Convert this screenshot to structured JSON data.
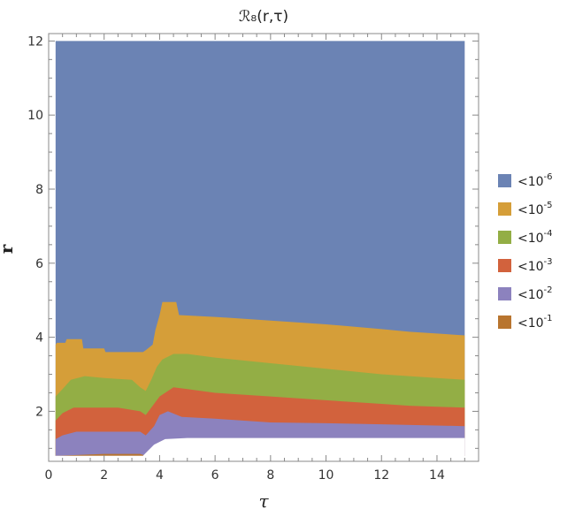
{
  "chart_data": {
    "type": "region",
    "title": "ℛ₈(r,τ)",
    "xlabel": "τ",
    "ylabel": "r",
    "xlim": [
      0,
      15.5
    ],
    "ylim": [
      0.65,
      12.2
    ],
    "xticks": [
      0,
      2,
      4,
      6,
      8,
      10,
      12,
      14
    ],
    "xtick_labels": [
      "0",
      "2",
      "4",
      "6",
      "8",
      "10",
      "12",
      "14"
    ],
    "yticks": [
      2,
      4,
      6,
      8,
      10,
      12
    ],
    "ytick_labels": [
      "2",
      "4",
      "6",
      "8",
      "10",
      "12"
    ],
    "grid": false,
    "legend_placement": "right",
    "legend": [
      {
        "base": "<10",
        "exponent": "-6",
        "color": "#6B83B4"
      },
      {
        "base": "<10",
        "exponent": "-5",
        "color": "#D59E39"
      },
      {
        "base": "<10",
        "exponent": "-4",
        "color": "#93AE45"
      },
      {
        "base": "<10",
        "exponent": "-3",
        "color": "#D2623D"
      },
      {
        "base": "<10",
        "exponent": "-2",
        "color": "#8C82BE"
      },
      {
        "base": "<10",
        "exponent": "-1",
        "color": "#B8752F"
      }
    ],
    "domain": {
      "x": [
        0.25,
        15
      ],
      "y": [
        0.8,
        12
      ]
    },
    "region_tops": [
      {
        "level": "<10^-5",
        "color": "#D59E39",
        "points": [
          [
            0.25,
            3.8
          ],
          [
            0.3,
            3.85
          ],
          [
            0.6,
            3.85
          ],
          [
            0.65,
            3.95
          ],
          [
            1.2,
            3.95
          ],
          [
            1.25,
            3.7
          ],
          [
            2.0,
            3.7
          ],
          [
            2.05,
            3.6
          ],
          [
            3.4,
            3.6
          ],
          [
            3.5,
            3.65
          ],
          [
            3.75,
            3.8
          ],
          [
            3.85,
            4.2
          ],
          [
            4.0,
            4.6
          ],
          [
            4.1,
            4.95
          ],
          [
            4.6,
            4.95
          ],
          [
            4.7,
            4.6
          ],
          [
            6,
            4.55
          ],
          [
            8,
            4.45
          ],
          [
            10,
            4.35
          ],
          [
            12,
            4.22
          ],
          [
            13,
            4.15
          ],
          [
            15,
            4.05
          ]
        ]
      },
      {
        "level": "<10^-4",
        "color": "#93AE45",
        "points": [
          [
            0.25,
            2.4
          ],
          [
            0.5,
            2.6
          ],
          [
            0.8,
            2.85
          ],
          [
            1.3,
            2.95
          ],
          [
            2.0,
            2.9
          ],
          [
            3.0,
            2.85
          ],
          [
            3.3,
            2.65
          ],
          [
            3.5,
            2.55
          ],
          [
            3.7,
            2.85
          ],
          [
            3.9,
            3.2
          ],
          [
            4.1,
            3.4
          ],
          [
            4.5,
            3.55
          ],
          [
            5,
            3.55
          ],
          [
            6,
            3.45
          ],
          [
            8,
            3.3
          ],
          [
            10,
            3.15
          ],
          [
            12,
            3.0
          ],
          [
            13,
            2.95
          ],
          [
            15,
            2.85
          ]
        ]
      },
      {
        "level": "<10^-3",
        "color": "#D2623D",
        "points": [
          [
            0.25,
            1.75
          ],
          [
            0.5,
            1.95
          ],
          [
            0.9,
            2.1
          ],
          [
            1.5,
            2.1
          ],
          [
            2.5,
            2.1
          ],
          [
            3.3,
            2.0
          ],
          [
            3.5,
            1.9
          ],
          [
            3.7,
            2.1
          ],
          [
            4.0,
            2.4
          ],
          [
            4.5,
            2.65
          ],
          [
            5,
            2.6
          ],
          [
            6,
            2.5
          ],
          [
            8,
            2.4
          ],
          [
            10,
            2.3
          ],
          [
            12,
            2.2
          ],
          [
            13,
            2.15
          ],
          [
            15,
            2.1
          ]
        ]
      },
      {
        "level": "<10^-2",
        "color": "#8C82BE",
        "points": [
          [
            0.25,
            1.25
          ],
          [
            0.5,
            1.35
          ],
          [
            1.0,
            1.45
          ],
          [
            2.0,
            1.45
          ],
          [
            3.3,
            1.45
          ],
          [
            3.5,
            1.35
          ],
          [
            3.8,
            1.6
          ],
          [
            4.0,
            1.9
          ],
          [
            4.3,
            2.0
          ],
          [
            4.8,
            1.85
          ],
          [
            6,
            1.8
          ],
          [
            8,
            1.7
          ],
          [
            10,
            1.68
          ],
          [
            12,
            1.65
          ],
          [
            15,
            1.6
          ]
        ]
      },
      {
        "level": "<10^-1",
        "color": "#B8752F",
        "points": [
          [
            0.25,
            0.8
          ],
          [
            1.0,
            0.82
          ],
          [
            2.0,
            0.85
          ],
          [
            3.3,
            0.85
          ],
          [
            3.5,
            0.8
          ]
        ]
      }
    ],
    "white_floor": [
      [
        0.25,
        0.8
      ],
      [
        3.4,
        0.8
      ],
      [
        3.6,
        0.95
      ],
      [
        3.8,
        1.1
      ],
      [
        4.2,
        1.25
      ],
      [
        5,
        1.28
      ],
      [
        15,
        1.28
      ]
    ]
  }
}
